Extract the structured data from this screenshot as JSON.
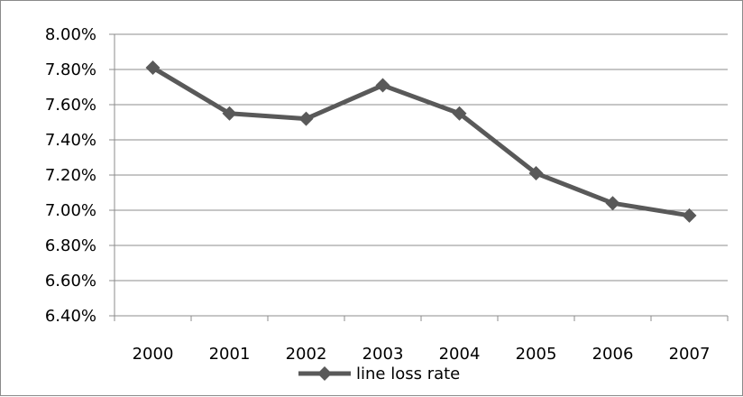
{
  "chart_data": {
    "type": "line",
    "categories": [
      "2000",
      "2001",
      "2002",
      "2003",
      "2004",
      "2005",
      "2006",
      "2007"
    ],
    "series": [
      {
        "name": "line loss rate",
        "values": [
          7.81,
          7.55,
          7.52,
          7.71,
          7.55,
          7.21,
          7.04,
          6.97
        ]
      }
    ],
    "y_unit": "%",
    "ylim": [
      6.4,
      8.0
    ],
    "y_ticks": [
      "6.40%",
      "6.60%",
      "6.80%",
      "7.00%",
      "7.20%",
      "7.40%",
      "7.60%",
      "7.80%",
      "8.00%"
    ],
    "grid": "horizontal",
    "legend_position": "bottom",
    "colors": {
      "series": "#595959",
      "grid": "#8c8c8c",
      "axis": "#8c8c8c"
    }
  }
}
